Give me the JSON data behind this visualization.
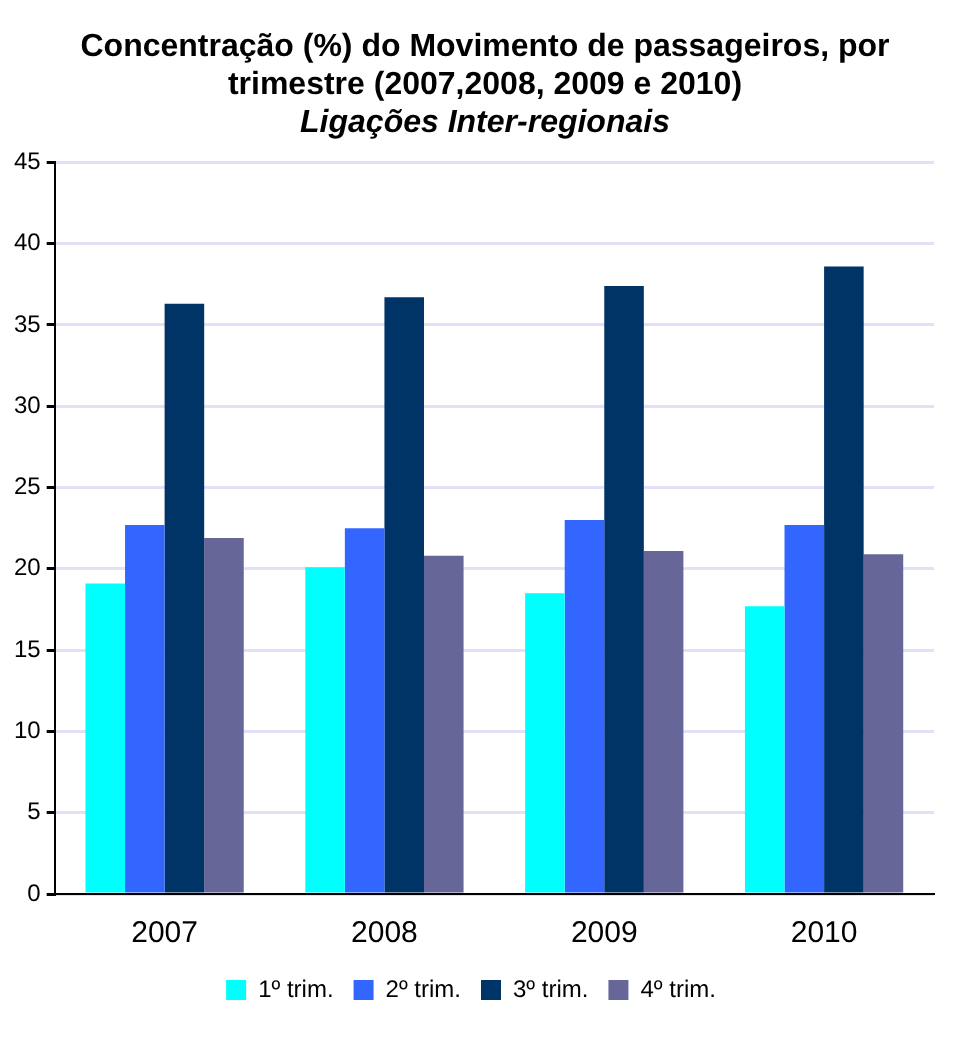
{
  "chart_data": {
    "type": "bar",
    "title": "Concentração (%) do Movimento de passageiros, por trimestre (2007,2008, 2009 e 2010)",
    "subtitle": "Ligações Inter-regionais",
    "categories": [
      "2007",
      "2008",
      "2009",
      "2010"
    ],
    "series": [
      {
        "name": "1º trim.",
        "color": "#00ffff",
        "values": [
          19.1,
          20.1,
          18.5,
          17.7
        ]
      },
      {
        "name": "2º trim.",
        "color": "#3366ff",
        "values": [
          22.7,
          22.5,
          23.0,
          22.7
        ]
      },
      {
        "name": "3º trim.",
        "color": "#003366",
        "values": [
          36.3,
          36.7,
          37.4,
          38.6
        ]
      },
      {
        "name": "4º trim.",
        "color": "#666699",
        "values": [
          21.9,
          20.8,
          21.1,
          20.9
        ]
      }
    ],
    "ylim": [
      0,
      45
    ],
    "yticks": [
      0,
      5,
      10,
      15,
      20,
      25,
      30,
      35,
      40,
      45
    ],
    "grid": "y",
    "legend": "bottom"
  }
}
